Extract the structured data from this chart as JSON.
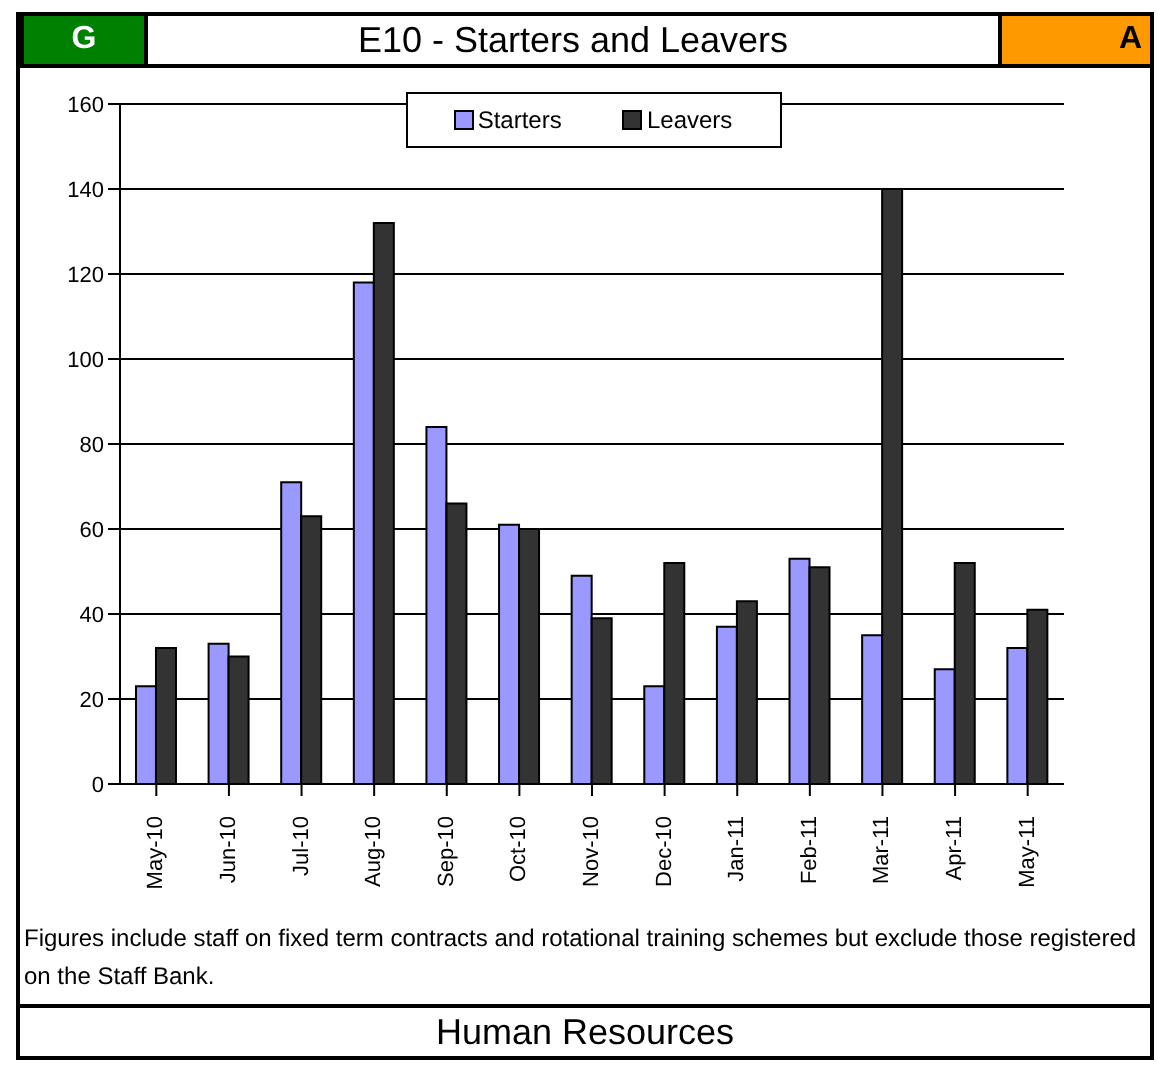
{
  "chart_data": {
    "type": "bar",
    "title": "E10 - Starters and Leavers",
    "categories": [
      "May-10",
      "Jun-10",
      "Jul-10",
      "Aug-10",
      "Sep-10",
      "Oct-10",
      "Nov-10",
      "Dec-10",
      "Jan-11",
      "Feb-11",
      "Mar-11",
      "Apr-11",
      "May-11"
    ],
    "series": [
      {
        "name": "Starters",
        "color": "#9999ff",
        "values": [
          23,
          33,
          71,
          118,
          84,
          61,
          49,
          23,
          37,
          53,
          35,
          27,
          32
        ]
      },
      {
        "name": "Leavers",
        "color": "#333333",
        "values": [
          32,
          30,
          63,
          132,
          66,
          60,
          39,
          52,
          43,
          51,
          140,
          52,
          41
        ]
      }
    ],
    "ylim": [
      0,
      160
    ],
    "yticks": [
      0,
      20,
      40,
      60,
      80,
      100,
      120,
      140,
      160
    ],
    "grid": "y",
    "legend": "top",
    "annotations": [
      "G",
      "A",
      "Figures include staff on fixed term contracts and rotational training schemes but exclude those registered on the Staff Bank.",
      "Human Resources"
    ]
  }
}
